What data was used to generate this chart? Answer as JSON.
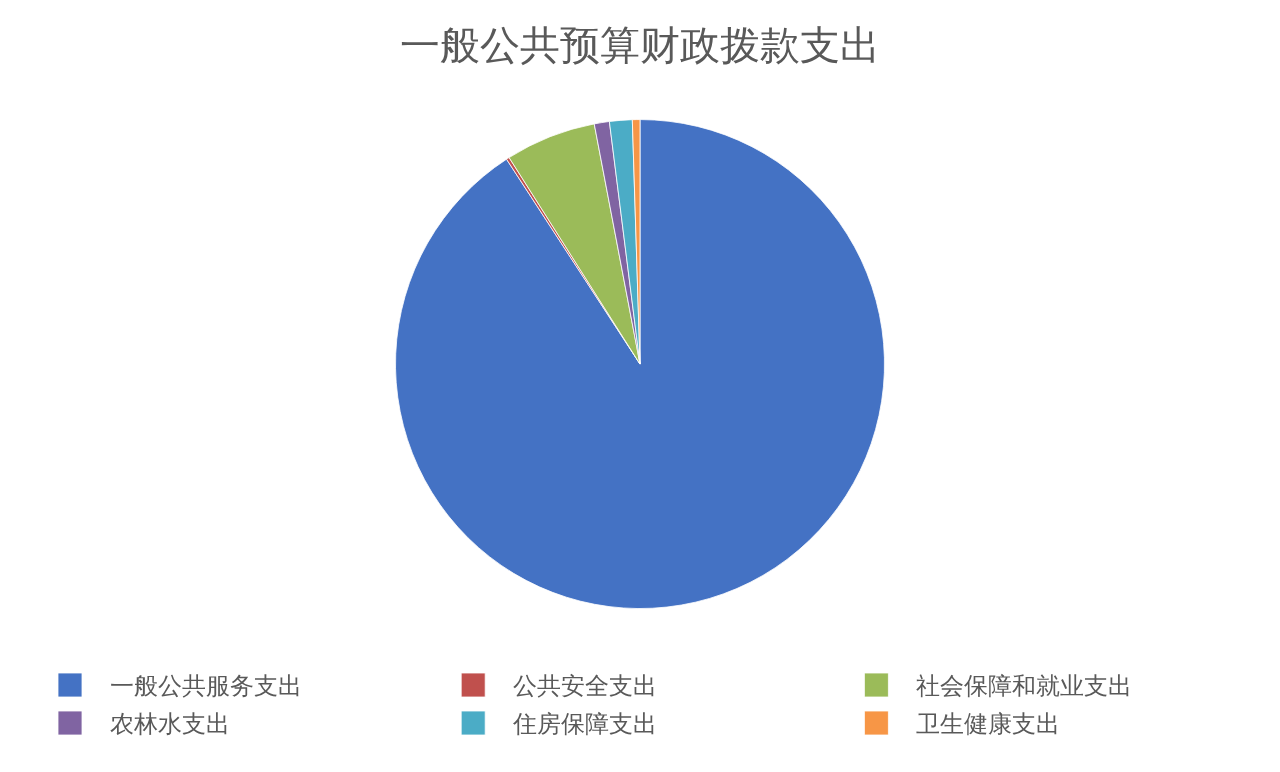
{
  "chart_data": {
    "type": "pie",
    "title": "一般公共预算财政拨款支出",
    "categories": [
      "一般公共服务支出",
      "公共安全支出",
      "社会保障和就业支出",
      "农林水支出",
      "住房保障支出",
      "卫生健康支出"
    ],
    "values": [
      90.9,
      0.2,
      6,
      1,
      1.5,
      0.5
    ],
    "colors": [
      "#4472c4",
      "#c0504d",
      "#9bbb59",
      "#8064a2",
      "#4bacc6",
      "#f79646"
    ],
    "legend": "bottom"
  }
}
